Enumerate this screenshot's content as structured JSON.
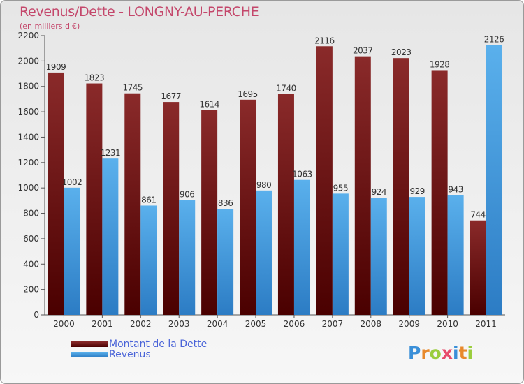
{
  "chart_data": {
    "type": "bar",
    "title": "Revenus/Dette - LONGNY-AU-PERCHE",
    "subtitle": "(en milliers d'€)",
    "categories": [
      "2000",
      "2001",
      "2002",
      "2003",
      "2004",
      "2005",
      "2006",
      "2007",
      "2008",
      "2009",
      "2010",
      "2011"
    ],
    "series": [
      {
        "name": "Montant de la Dette",
        "color": "#7a1d1d",
        "values": [
          1909,
          1823,
          1745,
          1677,
          1614,
          1695,
          1740,
          2116,
          2037,
          2023,
          1928,
          744
        ]
      },
      {
        "name": "Revenus",
        "color": "#4ea3e6",
        "values": [
          1002,
          1231,
          861,
          906,
          836,
          980,
          1063,
          955,
          924,
          929,
          943,
          2126
        ]
      }
    ],
    "ylim": [
      0,
      2200
    ],
    "yticks": [
      0,
      200,
      400,
      600,
      800,
      1000,
      1200,
      1400,
      1600,
      1800,
      2000,
      2200
    ],
    "grid": false,
    "legend_position": "bottom-left"
  },
  "branding": {
    "logo_letters": [
      "P",
      "r",
      "o",
      "x",
      "i",
      "t",
      "i"
    ],
    "logo_colors": [
      "#3a8fd8",
      "#e8892b",
      "#9acd3c",
      "#e84a6a",
      "#3a8fd8",
      "#e8892b",
      "#9acd3c"
    ]
  }
}
